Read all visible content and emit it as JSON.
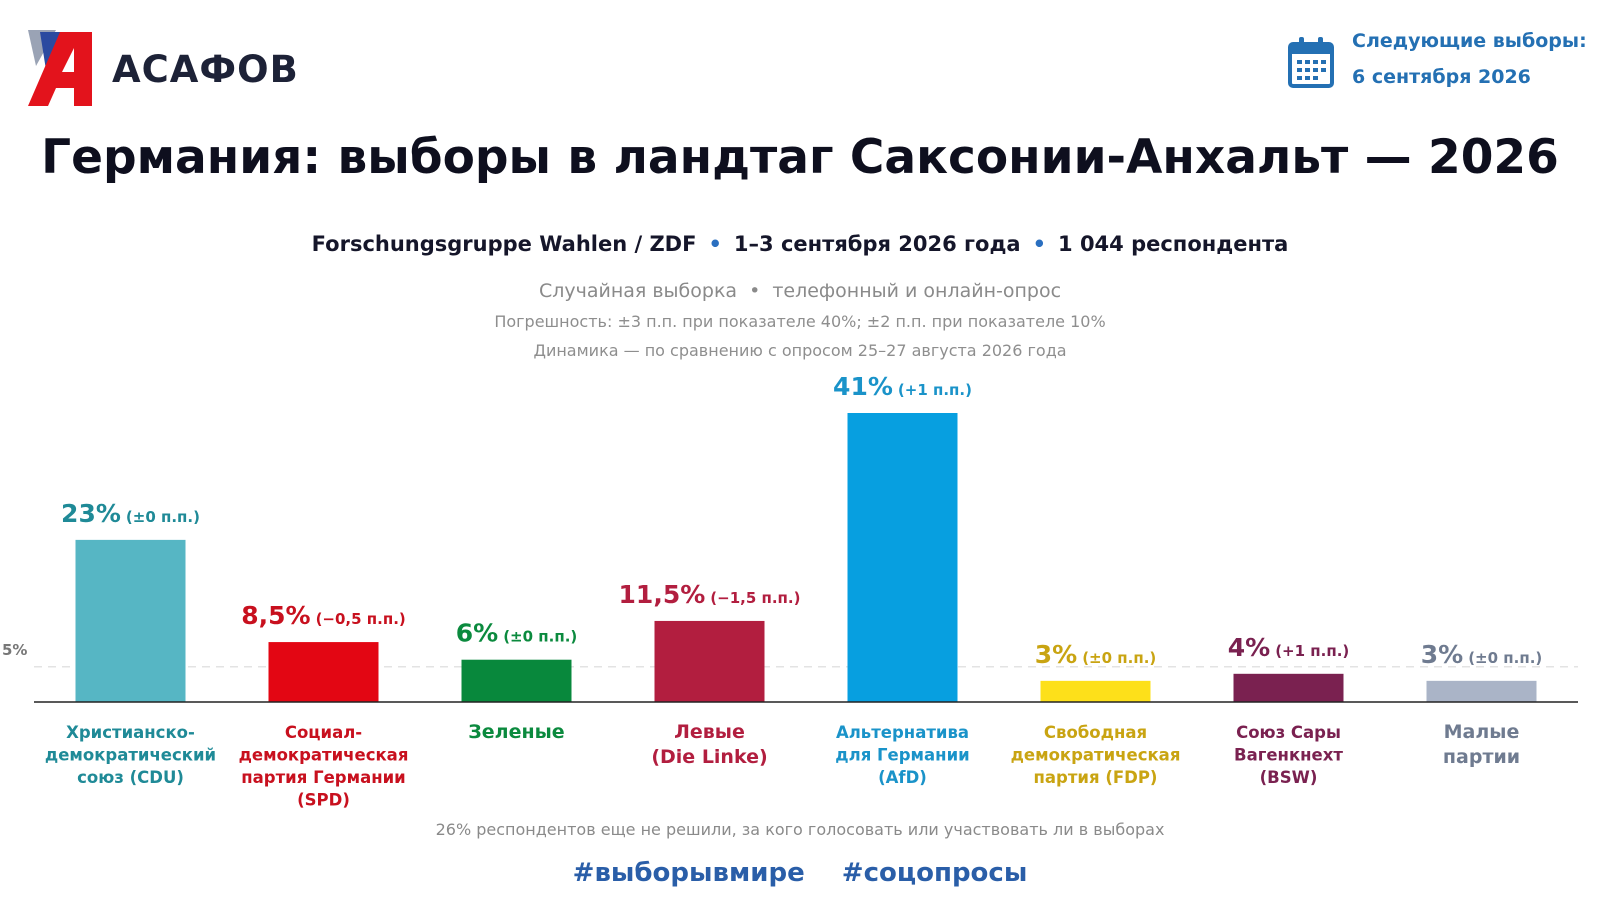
{
  "brand": {
    "name": "АСАФОВ",
    "logo_icon": "letter-a-logo"
  },
  "next_election": {
    "label": "Следующие выборы:",
    "date": "6 сентября 2026",
    "icon": "calendar-icon"
  },
  "title": "Германия: выборы в ландтаг Саксонии-Анхальт — 2026",
  "subtitle": {
    "source": "Forschungsgruppe Wahlen / ZDF",
    "dates": "1–3 сентября 2026 года",
    "respondents": "1 044 респондента"
  },
  "methodology": {
    "sampling": "Случайная выборка",
    "mode": "телефонный и онлайн-опрос",
    "error": "Погрешность: ±3 п.п. при показателе 40%; ±2 п.п. при показателе 10%",
    "dynamics": "Динамика — по сравнению с опросом 25–27 августа 2026 года"
  },
  "chart_data": {
    "type": "bar",
    "ylim": [
      0,
      41
    ],
    "threshold": {
      "value": 5,
      "label": "5%"
    },
    "categories": [
      "Христианско-демократический союз (CDU)",
      "Социал-демократическая партия Германии (SPD)",
      "Зеленые",
      "Левые (Die Linke)",
      "Альтернатива для Германии (AfD)",
      "Свободная демократическая партия (FDP)",
      "Союз Сары Вагенкнехт (BSW)",
      "Малые партии"
    ],
    "category_lines": [
      [
        "Христианско-",
        "демократический",
        "союз (CDU)"
      ],
      [
        "Социал-",
        "демократическая",
        "партия Германии",
        "(SPD)"
      ],
      [
        "Зеленые"
      ],
      [
        "Левые",
        "(Die Linke)"
      ],
      [
        "Альтернатива",
        "для Германии",
        "(AfD)"
      ],
      [
        "Свободная",
        "демократическая",
        "партия (FDP)"
      ],
      [
        "Союз Сары",
        "Вагенкнехт",
        "(BSW)"
      ],
      [
        "Малые",
        "партии"
      ]
    ],
    "values": [
      23,
      8.5,
      6,
      11.5,
      41,
      3,
      4,
      3
    ],
    "value_labels": [
      "23%",
      "8,5%",
      "6%",
      "11,5%",
      "41%",
      "3%",
      "4%",
      "3%"
    ],
    "changes": [
      "(±0 п.п.)",
      "(−0,5 п.п.)",
      "(±0 п.п.)",
      "(−1,5 п.п.)",
      "(+1 п.п.)",
      "(±0 п.п.)",
      "(+1 п.п.)",
      "(±0 п.п.)"
    ],
    "colors": [
      "#56b6c4",
      "#e30613",
      "#08883c",
      "#b21e3f",
      "#079fe0",
      "#fde01a",
      "#7a2150",
      "#aab4c7"
    ],
    "label_colors": [
      "#1f8a97",
      "#c8101e",
      "#0b8a3e",
      "#b21e3f",
      "#1a93c9",
      "#c9a412",
      "#7a2150",
      "#6f7b90"
    ]
  },
  "footnote": "26% респондентов еще не решили, за кого голосовать или участвовать ли в выборах",
  "hashtags": [
    "#выборывмире",
    "#соцопросы"
  ]
}
